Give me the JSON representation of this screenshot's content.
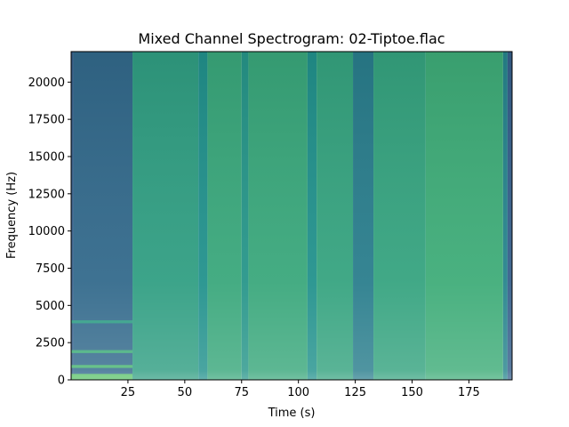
{
  "chart_data": {
    "type": "heatmap",
    "title": "Mixed Channel Spectrogram: 02-Tiptoe.flac",
    "xlabel": "Time (s)",
    "ylabel": "Frequency (Hz)",
    "xlim": [
      0,
      194
    ],
    "ylim": [
      0,
      22050
    ],
    "xticks": [
      25,
      50,
      75,
      100,
      125,
      150,
      175
    ],
    "yticks": [
      0,
      2500,
      5000,
      7500,
      10000,
      12500,
      15000,
      17500,
      20000
    ],
    "colormap": "viridis",
    "time_segments": [
      {
        "start": 0,
        "end": 1,
        "level": 0.3
      },
      {
        "start": 1,
        "end": 27,
        "level": 0.34
      },
      {
        "start": 27,
        "end": 56,
        "level": 0.56
      },
      {
        "start": 56,
        "end": 60,
        "level": 0.5
      },
      {
        "start": 60,
        "end": 75,
        "level": 0.6
      },
      {
        "start": 75,
        "end": 78,
        "level": 0.52
      },
      {
        "start": 78,
        "end": 104,
        "level": 0.6
      },
      {
        "start": 104,
        "end": 108,
        "level": 0.5
      },
      {
        "start": 108,
        "end": 124,
        "level": 0.58
      },
      {
        "start": 124,
        "end": 133,
        "level": 0.42
      },
      {
        "start": 133,
        "end": 156,
        "level": 0.58
      },
      {
        "start": 156,
        "end": 190,
        "level": 0.62
      },
      {
        "start": 190,
        "end": 192,
        "level": 0.45
      },
      {
        "start": 192,
        "end": 194,
        "level": 0.3
      }
    ],
    "intro_bands": [
      {
        "f_low": 0,
        "f_high": 400,
        "level": 0.72
      },
      {
        "f_low": 800,
        "f_high": 1000,
        "level": 0.66
      },
      {
        "f_low": 1800,
        "f_high": 2000,
        "level": 0.62
      },
      {
        "f_low": 3800,
        "f_high": 4000,
        "level": 0.55
      }
    ]
  }
}
